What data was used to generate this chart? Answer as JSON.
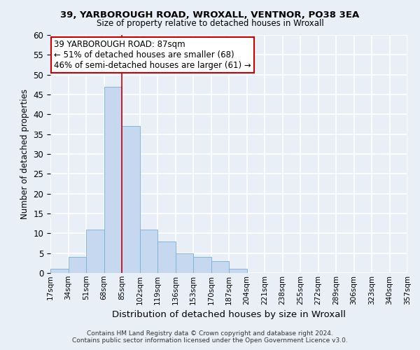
{
  "title1": "39, YARBOROUGH ROAD, WROXALL, VENTNOR, PO38 3EA",
  "title2": "Size of property relative to detached houses in Wroxall",
  "xlabel": "Distribution of detached houses by size in Wroxall",
  "ylabel": "Number of detached properties",
  "bar_values": [
    1,
    4,
    11,
    47,
    37,
    11,
    8,
    5,
    4,
    3,
    1,
    0,
    0,
    0,
    0,
    0,
    0,
    0,
    0,
    0
  ],
  "bin_labels": [
    "17sqm",
    "34sqm",
    "51sqm",
    "68sqm",
    "85sqm",
    "102sqm",
    "119sqm",
    "136sqm",
    "153sqm",
    "170sqm",
    "187sqm",
    "204sqm",
    "221sqm",
    "238sqm",
    "255sqm",
    "272sqm",
    "289sqm",
    "306sqm",
    "323sqm",
    "340sqm",
    "357sqm"
  ],
  "bar_color": "#c5d8ef",
  "bar_edge_color": "#7aafd4",
  "vline_x": 4.0,
  "vline_color": "#cc0000",
  "annotation_text": "39 YARBOROUGH ROAD: 87sqm\n← 51% of detached houses are smaller (68)\n46% of semi-detached houses are larger (61) →",
  "annotation_box_color": "#ffffff",
  "annotation_box_edge": "#cc0000",
  "ylim": [
    0,
    60
  ],
  "yticks": [
    0,
    5,
    10,
    15,
    20,
    25,
    30,
    35,
    40,
    45,
    50,
    55,
    60
  ],
  "footer1": "Contains HM Land Registry data © Crown copyright and database right 2024.",
  "footer2": "Contains public sector information licensed under the Open Government Licence v3.0.",
  "bg_color": "#e8eff7",
  "plot_bg_color": "#e8eff7",
  "grid_color": "#ffffff",
  "n_total_bins": 20
}
